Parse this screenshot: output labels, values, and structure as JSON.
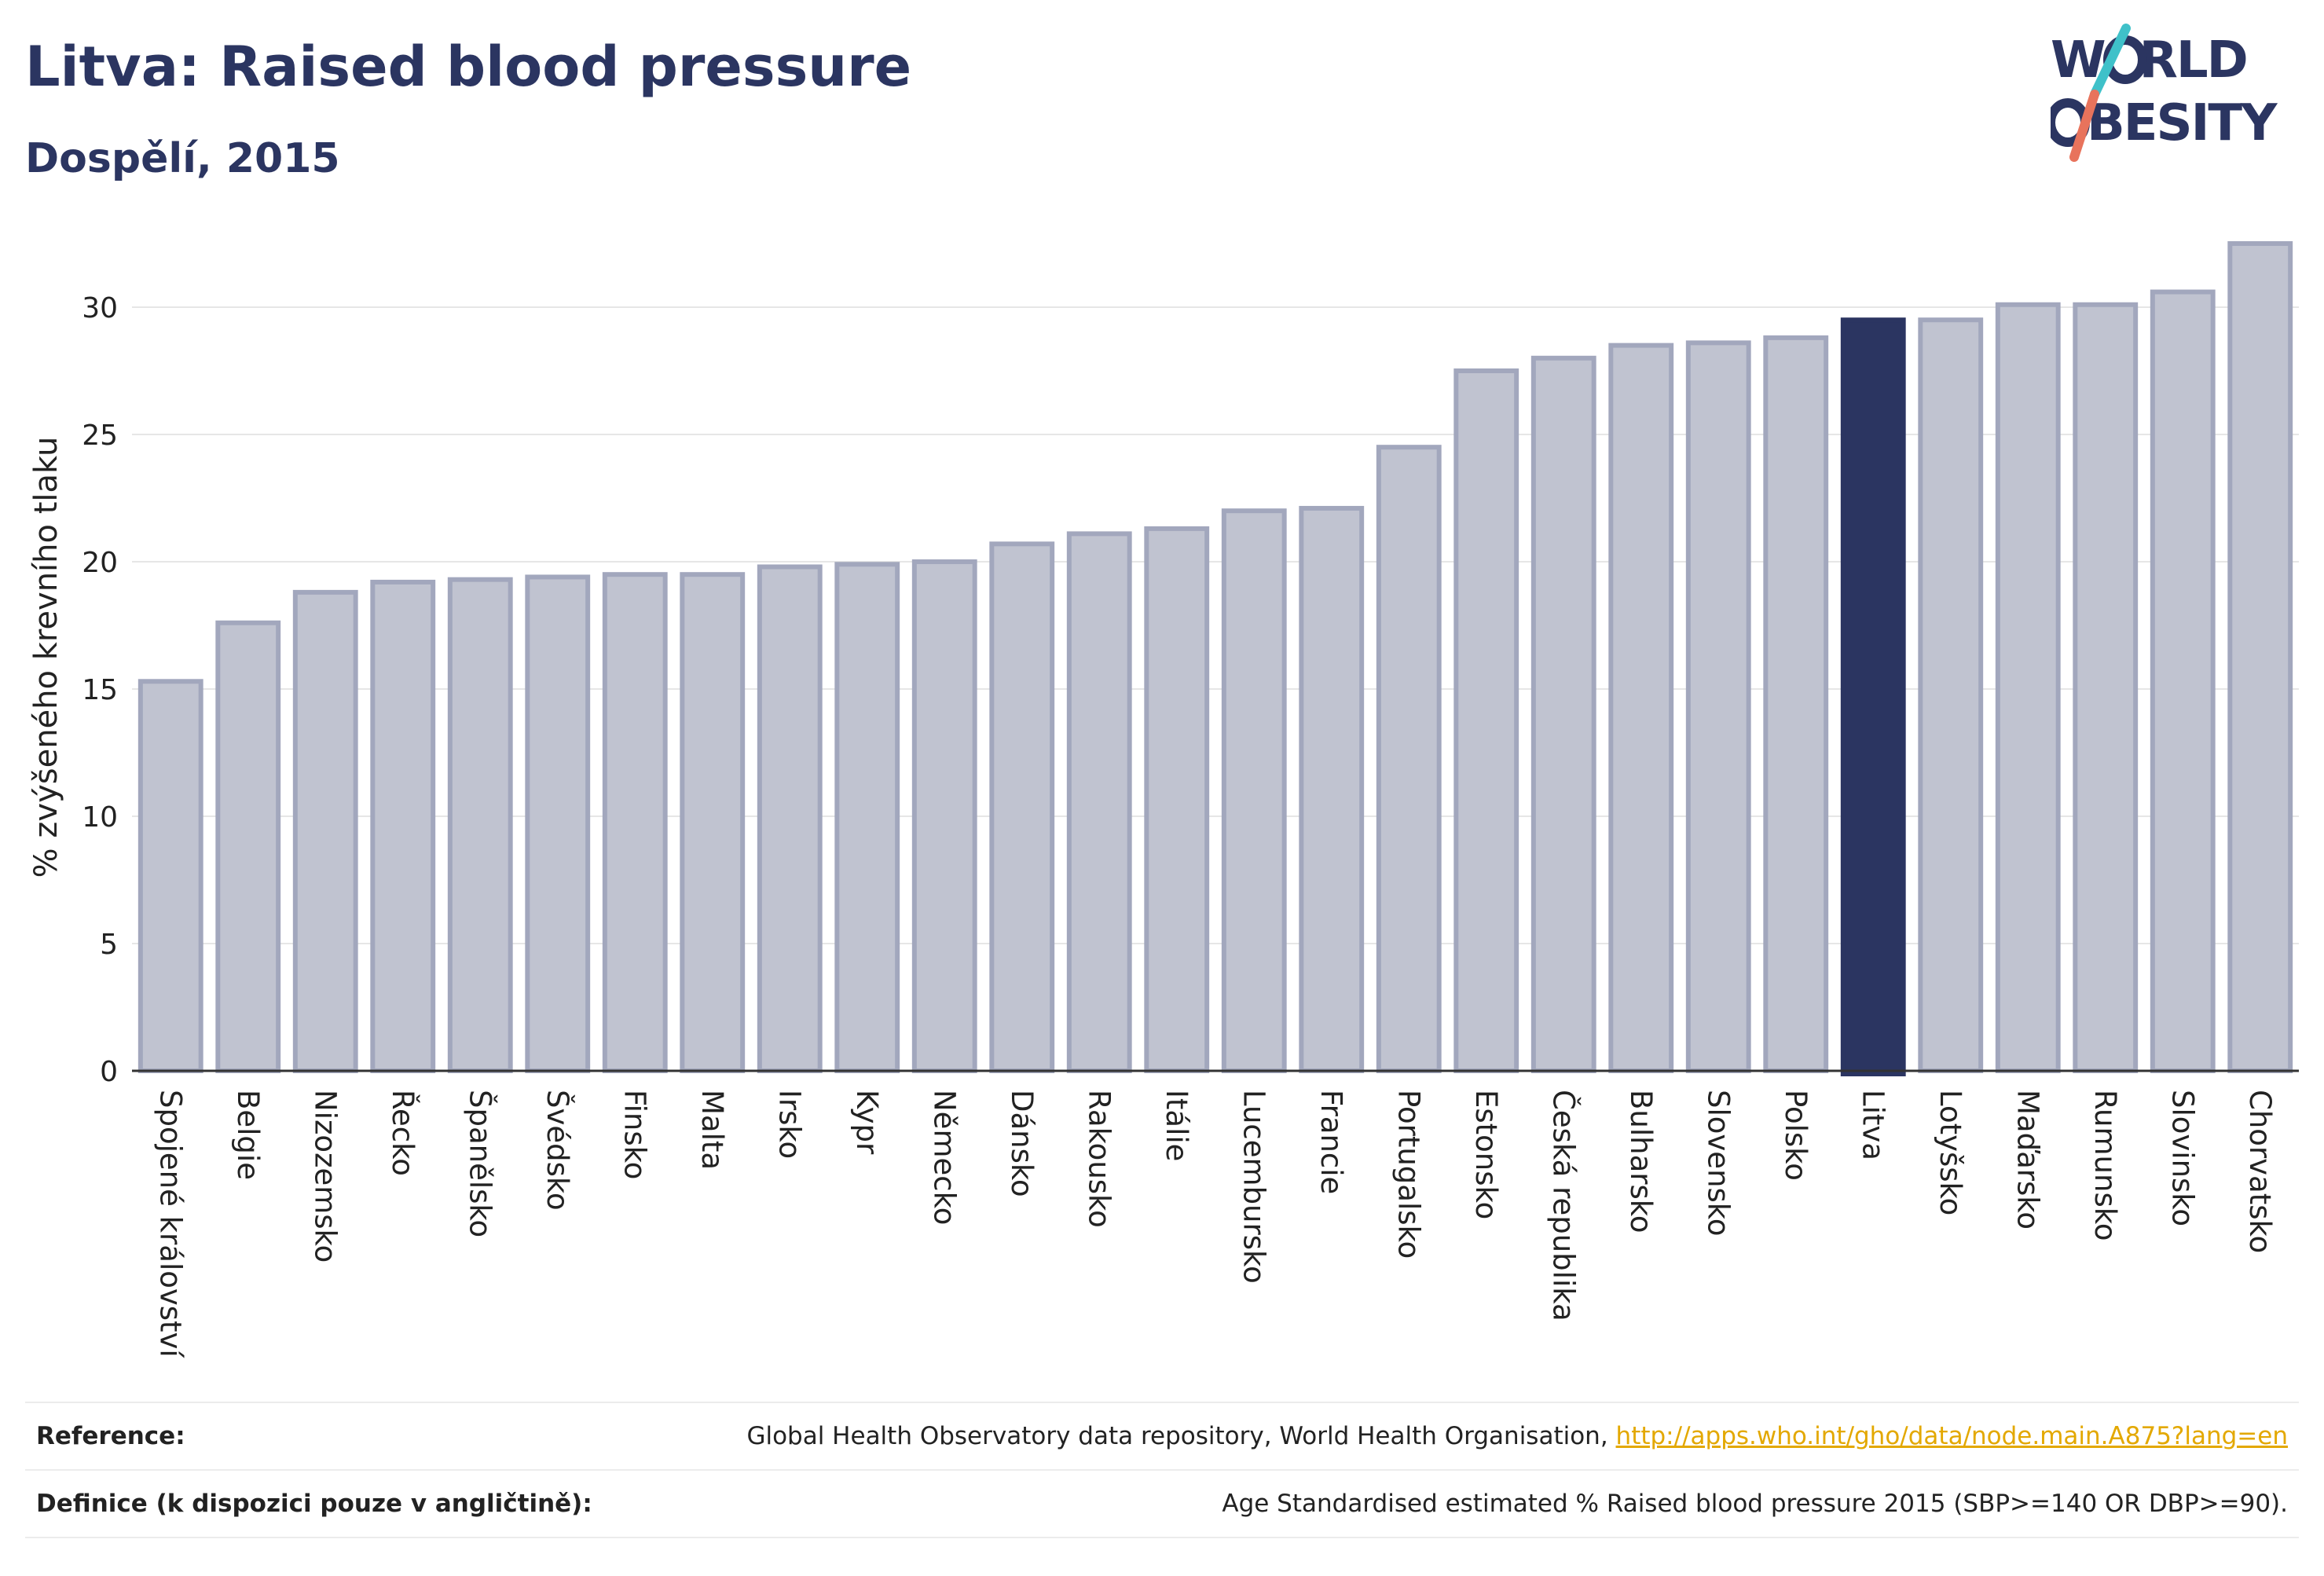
{
  "title": "Litva: Raised blood pressure",
  "subtitle": "Dospělí, 2015",
  "logo": {
    "line1_a": "W",
    "line1_b": "RLD",
    "line2_a": "",
    "line2_b": "BESITY"
  },
  "colors": {
    "highlight": "#2b3561",
    "bar": "#c0c3d0",
    "bar_border": "#a2a7bd",
    "logo_teal": "#3fc1c9",
    "logo_coral": "#e8735c",
    "link": "#e3a800"
  },
  "chart_data": {
    "type": "bar",
    "title": "Litva: Raised blood pressure",
    "subtitle": "Dospělí, 2015",
    "xlabel": "",
    "ylabel": "% zvýšeného krevního tlaku",
    "ylim": [
      0,
      32.5
    ],
    "yticks": [
      0,
      5,
      10,
      15,
      20,
      25,
      30
    ],
    "grid": true,
    "highlight": "Litva",
    "categories": [
      "Spojené království",
      "Belgie",
      "Nizozemsko",
      "Řecko",
      "Španělsko",
      "Švédsko",
      "Finsko",
      "Malta",
      "Irsko",
      "Kypr",
      "Německo",
      "Dánsko",
      "Rakousko",
      "Itálie",
      "Lucembursko",
      "Francie",
      "Portugalsko",
      "Estonsko",
      "Česká republika",
      "Bulharsko",
      "Slovensko",
      "Polsko",
      "Litva",
      "Lotyšsko",
      "Maďarsko",
      "Rumunsko",
      "Slovinsko",
      "Chorvatsko"
    ],
    "values": [
      15.3,
      17.6,
      18.8,
      19.2,
      19.3,
      19.4,
      19.5,
      19.5,
      19.8,
      19.9,
      20.0,
      20.7,
      21.1,
      21.3,
      22.0,
      22.1,
      24.5,
      27.5,
      28.0,
      28.5,
      28.6,
      28.8,
      29.5,
      29.5,
      30.1,
      30.1,
      30.6,
      32.5
    ]
  },
  "footer": {
    "reference_label": "Reference:",
    "reference_text": "Global Health Observatory data repository, World Health Organisation, ",
    "reference_link": "http://apps.who.int/gho/data/node.main.A875?lang=en",
    "definition_label": "Definice (k dispozici pouze v angličtině):",
    "definition_text": "Age Standardised estimated % Raised blood pressure 2015 (SBP>=140 OR DBP>=90)."
  }
}
